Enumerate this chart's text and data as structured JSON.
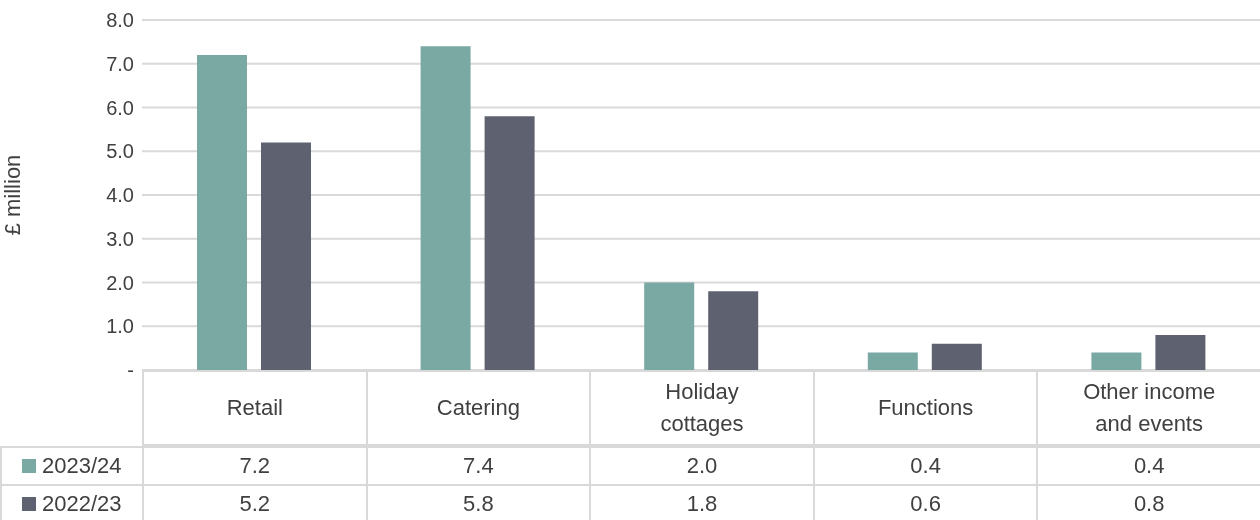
{
  "chart_data": {
    "type": "bar",
    "ylabel": "£ million",
    "categories": [
      "Retail",
      "Catering",
      "Holiday cottages",
      "Functions",
      "Other income and events"
    ],
    "series": [
      {
        "name": "2023/24",
        "color": "#7aa9a3",
        "values": [
          7.2,
          7.4,
          2.0,
          0.4,
          0.4
        ],
        "value_labels": [
          "7.2",
          "7.4",
          "2.0",
          "0.4",
          "0.4"
        ]
      },
      {
        "name": "2022/23",
        "color": "#5e6170",
        "values": [
          5.2,
          5.8,
          1.8,
          0.6,
          0.8
        ],
        "value_labels": [
          "5.2",
          "5.8",
          "1.8",
          "0.6",
          "0.8"
        ]
      }
    ],
    "ylim": [
      0,
      8
    ],
    "yticks": [
      {
        "value": 0,
        "label": "-"
      },
      {
        "value": 1,
        "label": "1.0"
      },
      {
        "value": 2,
        "label": "2.0"
      },
      {
        "value": 3,
        "label": "3.0"
      },
      {
        "value": 4,
        "label": "4.0"
      },
      {
        "value": 5,
        "label": "5.0"
      },
      {
        "value": 6,
        "label": "6.0"
      },
      {
        "value": 7,
        "label": "7.0"
      },
      {
        "value": 8,
        "label": "8.0"
      }
    ],
    "grid": "y",
    "legend": "bottom"
  }
}
